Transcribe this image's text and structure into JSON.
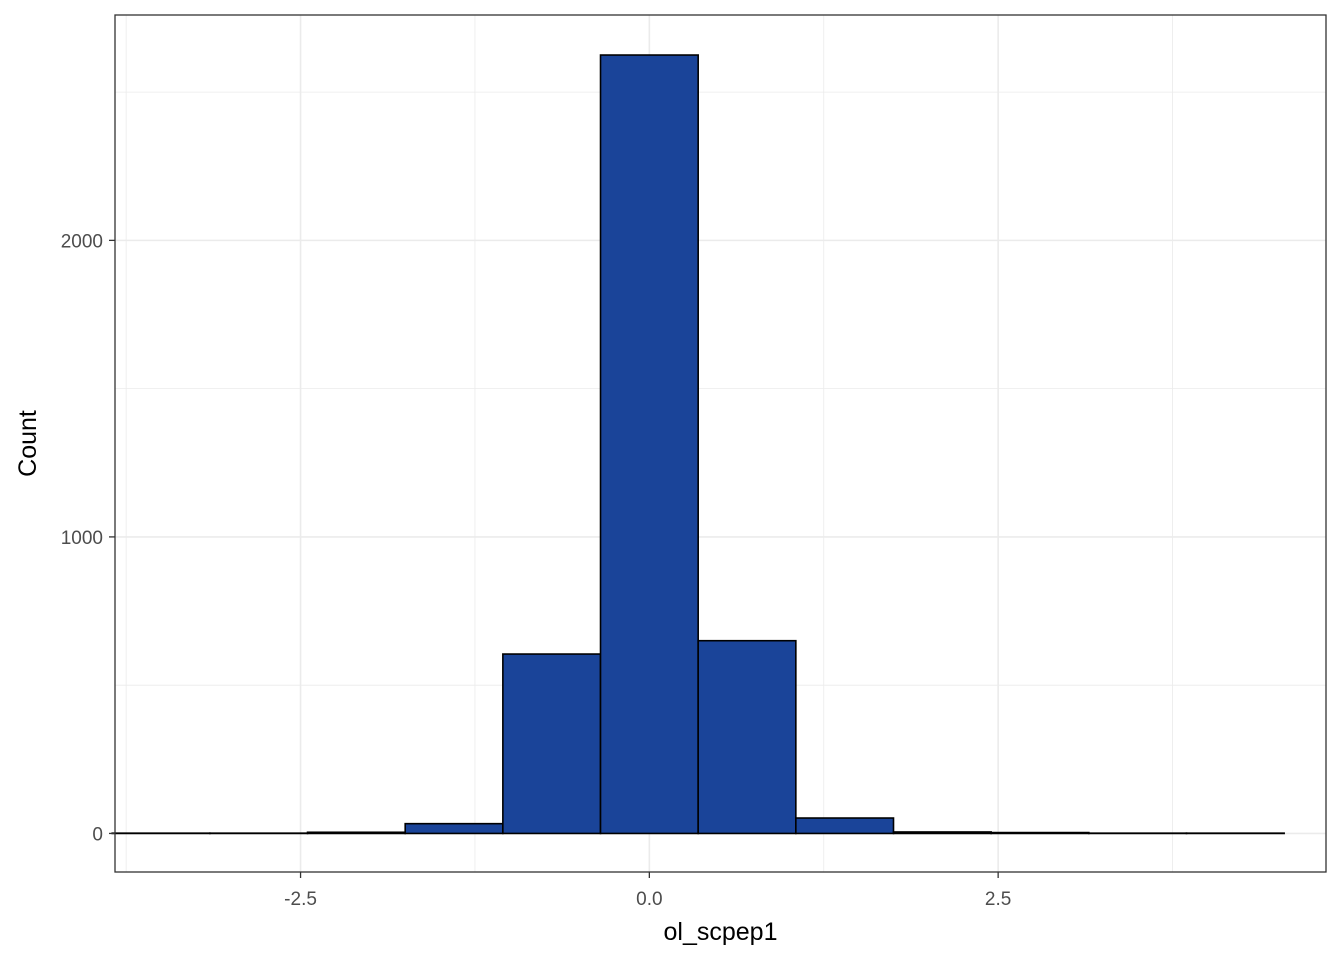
{
  "chart_data": {
    "type": "bar",
    "title": "",
    "xlabel": "ol_scpep1",
    "ylabel": "Count",
    "xlim": [
      -3.83,
      4.85
    ],
    "ylim": [
      -130,
      2760
    ],
    "x_ticks": [
      -2.5,
      0.0,
      2.5
    ],
    "x_tick_labels": [
      "-2.5",
      "0.0",
      "2.5"
    ],
    "y_ticks": [
      0,
      1000,
      2000
    ],
    "y_tick_labels": [
      "0",
      "1000",
      "2000"
    ],
    "grid": true,
    "legend": "none",
    "bin_width": 0.7,
    "bin_centers": [
      -3.5,
      -2.8,
      -2.1,
      -1.4,
      -0.7,
      0.0,
      0.7,
      1.4,
      2.1,
      2.8,
      3.5,
      4.2
    ],
    "values": [
      1,
      1,
      4,
      33,
      605,
      2625,
      650,
      52,
      5,
      3,
      1,
      1
    ],
    "colors": {
      "fill": "#1a4499",
      "outline": "#000000",
      "grid": "#ebebeb",
      "panel_border": "#333333",
      "background": "#ffffff"
    }
  }
}
